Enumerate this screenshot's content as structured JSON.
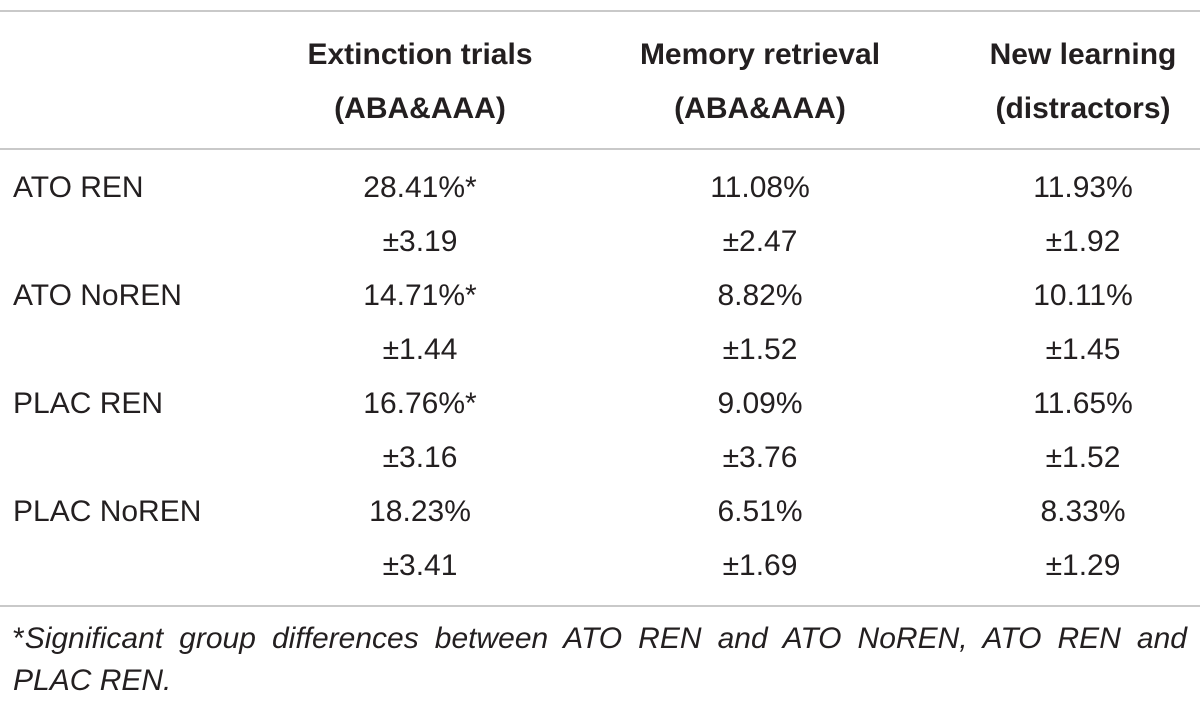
{
  "table": {
    "headers": [
      {
        "line1": "Extinction trials",
        "line2": "(ABA&AAA)"
      },
      {
        "line1": "Memory retrieval",
        "line2": "(ABA&AAA)"
      },
      {
        "line1": "New learning",
        "line2": "(distractors)"
      }
    ],
    "rows": [
      {
        "label": "ATO REN",
        "means": [
          "28.41%*",
          "11.08%",
          "11.93%"
        ],
        "errors": [
          "±3.19",
          "±2.47",
          "±1.92"
        ]
      },
      {
        "label": "ATO NoREN",
        "means": [
          "14.71%*",
          "8.82%",
          "10.11%"
        ],
        "errors": [
          "±1.44",
          "±1.52",
          "±1.45"
        ]
      },
      {
        "label": "PLAC REN",
        "means": [
          "16.76%*",
          "9.09%",
          "11.65%"
        ],
        "errors": [
          "±3.16",
          "±3.76",
          "±1.52"
        ]
      },
      {
        "label": "PLAC NoREN",
        "means": [
          "18.23%",
          "6.51%",
          "8.33%"
        ],
        "errors": [
          "±3.41",
          "±1.69",
          "±1.29"
        ]
      }
    ],
    "footnote": {
      "mark": "*",
      "text": "Significant group differences between ATO REN and ATO NoREN, ATO REN and PLAC REN."
    }
  }
}
